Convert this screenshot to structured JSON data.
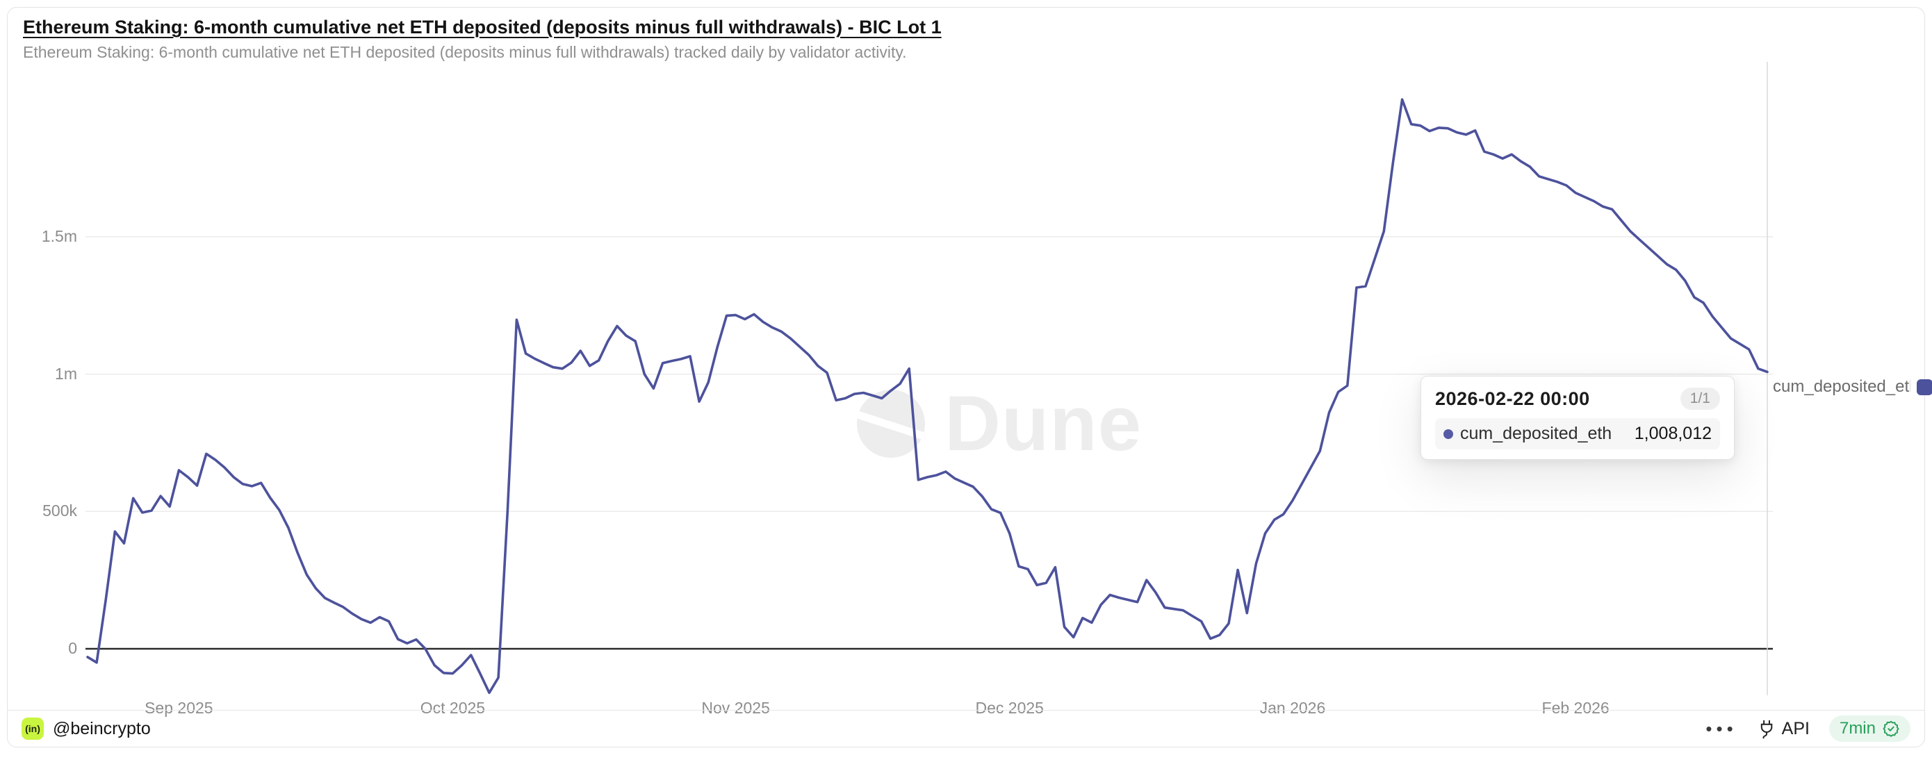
{
  "header": {
    "title": "Ethereum Staking: 6-month cumulative net ETH deposited (deposits minus full withdrawals) - BIC Lot 1",
    "subtitle": "Ethereum Staking: 6-month cumulative net ETH deposited (deposits minus full withdrawals) tracked daily by validator activity."
  },
  "chart_data": {
    "type": "line",
    "title": "Ethereum Staking: 6-month cumulative net ETH deposited (deposits minus full withdrawals) - BIC Lot 1",
    "series_name": "cum_deposited_eth",
    "frequency": "daily",
    "x_start_date": "2025-08-22",
    "x_end_date": "2026-02-22",
    "xlabel": "",
    "ylabel": "",
    "ylim": [
      -200000,
      2100000
    ],
    "grid": "horizontal",
    "zero_line": true,
    "legend_position": "right",
    "y_ticks": [
      {
        "label": "1.5m",
        "value": 1500000
      },
      {
        "label": "1m",
        "value": 1000000
      },
      {
        "label": "500k",
        "value": 500000
      },
      {
        "label": "0",
        "value": 0
      }
    ],
    "x_ticks": [
      {
        "label": "Sep 2025",
        "day_index": 10
      },
      {
        "label": "Oct 2025",
        "day_index": 40
      },
      {
        "label": "Nov 2025",
        "day_index": 71
      },
      {
        "label": "Dec 2025",
        "day_index": 101
      },
      {
        "label": "Jan 2026",
        "day_index": 132
      },
      {
        "label": "Feb 2026",
        "day_index": 163
      }
    ],
    "values": [
      -30000,
      -50000,
      180000,
      427000,
      384000,
      548000,
      496000,
      503000,
      556000,
      518000,
      650000,
      625000,
      594000,
      710000,
      688000,
      660000,
      625000,
      600000,
      592000,
      604000,
      550000,
      505000,
      440000,
      350000,
      270000,
      220000,
      185000,
      168000,
      152000,
      128000,
      108000,
      95000,
      115000,
      100000,
      35000,
      20000,
      34000,
      0,
      -60000,
      -88000,
      -90000,
      -60000,
      -23000,
      -90000,
      -160000,
      -105000,
      500000,
      1198000,
      1075000,
      1056000,
      1040000,
      1025000,
      1020000,
      1042000,
      1085000,
      1030000,
      1050000,
      1120000,
      1175000,
      1140000,
      1120000,
      1000000,
      948000,
      1040000,
      1048000,
      1055000,
      1065000,
      900000,
      970000,
      1100000,
      1213000,
      1215000,
      1200000,
      1218000,
      1190000,
      1170000,
      1155000,
      1130000,
      1100000,
      1070000,
      1030000,
      1005000,
      905000,
      912000,
      928000,
      932000,
      922000,
      912000,
      940000,
      965000,
      1020000,
      615000,
      625000,
      632000,
      645000,
      620000,
      605000,
      590000,
      555000,
      508000,
      495000,
      420000,
      300000,
      290000,
      232000,
      240000,
      297000,
      80000,
      42000,
      112000,
      95000,
      160000,
      196000,
      186000,
      178000,
      170000,
      250000,
      205000,
      150000,
      145000,
      140000,
      120000,
      100000,
      37000,
      50000,
      92000,
      287000,
      130000,
      310000,
      420000,
      470000,
      490000,
      540000,
      600000,
      660000,
      720000,
      860000,
      935000,
      958000,
      1315000,
      1320000,
      1420000,
      1520000,
      1770000,
      2000000,
      1910000,
      1905000,
      1885000,
      1897000,
      1895000,
      1880000,
      1872000,
      1887000,
      1810000,
      1800000,
      1785000,
      1800000,
      1775000,
      1755000,
      1720000,
      1710000,
      1700000,
      1687000,
      1660000,
      1645000,
      1630000,
      1610000,
      1600000,
      1560000,
      1520000,
      1490000,
      1460000,
      1430000,
      1400000,
      1380000,
      1340000,
      1280000,
      1260000,
      1210000,
      1170000,
      1130000,
      1110000,
      1090000,
      1020000,
      1008012
    ],
    "line_color": "#4d529c",
    "last_point": {
      "date": "2026-02-22 00:00",
      "value": 1008012
    }
  },
  "tooltip": {
    "date": "2026-02-22 00:00",
    "badge": "1/1",
    "series": "cum_deposited_eth",
    "value": "1,008,012",
    "dot_color": "#565ba6"
  },
  "legend": {
    "label": "cum_deposited_eth",
    "swatch_color": "#4d529c"
  },
  "watermark": {
    "text": "Dune"
  },
  "footer": {
    "logo_text": "(in)",
    "handle": "@beincrypto",
    "menu": "•••",
    "api_label": "API",
    "refresh_label": "7min"
  },
  "colors": {
    "line": "#4d529c",
    "grid": "#ebebeb",
    "zero_line": "#2b2b2b",
    "crosshair": "#d9d9d9",
    "axis_text": "#8c8c8c",
    "logo_bg": "#c9f43f",
    "refresh_green": "#27a05a",
    "refresh_bg": "#e9f6ee"
  }
}
